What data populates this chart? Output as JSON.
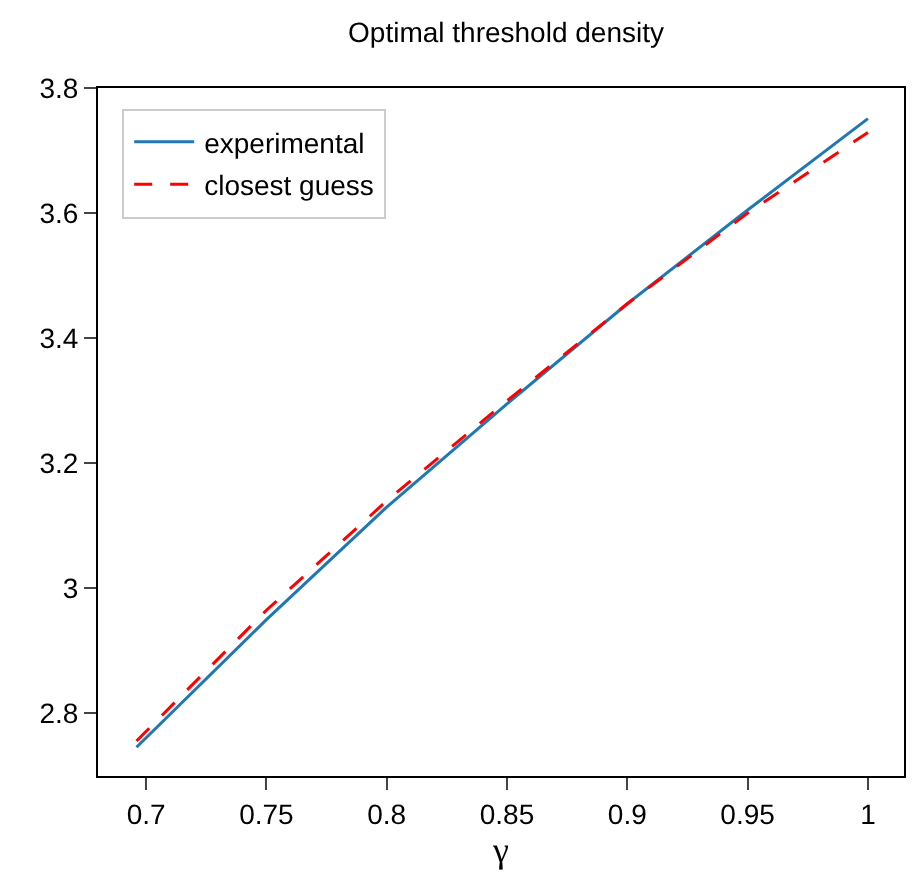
{
  "chart_data": {
    "type": "line",
    "title": "Optimal threshold density",
    "xlabel": "γ",
    "x": [
      0.696,
      0.75,
      0.8,
      0.85,
      0.9,
      0.95,
      1.0
    ],
    "series": [
      {
        "name": "experimental",
        "color": "#1f77b4",
        "line_style": "solid",
        "values": [
          2.746,
          2.95,
          3.13,
          3.295,
          3.455,
          3.605,
          3.751
        ]
      },
      {
        "name": "closest guess",
        "color": "#ff0000",
        "line_style": "dashed",
        "values": [
          2.756,
          2.965,
          3.14,
          3.3,
          3.455,
          3.6,
          3.729
        ]
      }
    ],
    "xlim": [
      0.68,
      1.015
    ],
    "xticks": [
      0.7,
      0.75,
      0.8,
      0.85,
      0.9,
      0.95,
      1
    ],
    "ylim": [
      2.7,
      3.8
    ],
    "yticks": [
      2.8,
      3,
      3.2,
      3.4,
      3.6,
      3.8
    ],
    "grid": false,
    "legend": "top left",
    "marker": "none"
  }
}
